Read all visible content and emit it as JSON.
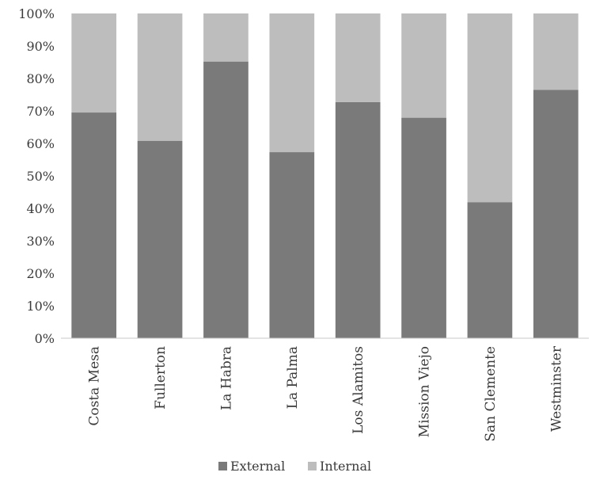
{
  "chart_data": {
    "type": "bar",
    "stacked": true,
    "percent": true,
    "categories": [
      "Costa Mesa",
      "Fullerton",
      "La Habra",
      "La Palma",
      "Los Alamitos",
      "Mission Viejo",
      "San Clemente",
      "Westminster"
    ],
    "series": [
      {
        "name": "External",
        "color": "#7a7a7a",
        "values": [
          69.5,
          60.8,
          85.2,
          57.3,
          72.7,
          67.9,
          41.9,
          76.5
        ]
      },
      {
        "name": "Internal",
        "color": "#bdbdbd",
        "values": [
          30.5,
          39.2,
          14.8,
          42.7,
          27.3,
          32.1,
          58.1,
          23.5
        ]
      }
    ],
    "y_ticks": [
      "0%",
      "10%",
      "20%",
      "30%",
      "40%",
      "50%",
      "60%",
      "70%",
      "80%",
      "90%",
      "100%"
    ],
    "ylim": [
      0,
      100
    ],
    "grid": false,
    "legend": "bottom",
    "title": "",
    "xlabel": "",
    "ylabel": ""
  }
}
